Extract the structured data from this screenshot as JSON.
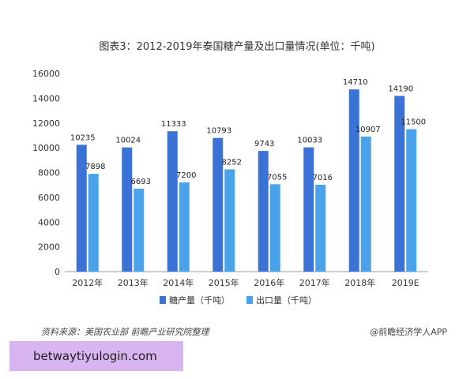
{
  "chart_data": {
    "type": "bar",
    "title": "图表3：2012-2019年泰国糖产量及出口量情况(单位：千吨)",
    "categories": [
      "2012年",
      "2013年",
      "2014年",
      "2015年",
      "2016年",
      "2017年",
      "2018年",
      "2019E"
    ],
    "series": [
      {
        "name": "糖产量（千吨）",
        "values": [
          10235,
          10024,
          11333,
          10793,
          9743,
          10033,
          14710,
          14190
        ],
        "color": "#3a72d6"
      },
      {
        "name": "出口量（千吨）",
        "values": [
          7898,
          6693,
          7200,
          8252,
          7055,
          7016,
          10907,
          11500
        ],
        "color": "#4aa3ea"
      }
    ],
    "ylim": [
      0,
      16000
    ],
    "yticks": [
      0,
      2000,
      4000,
      6000,
      8000,
      10000,
      12000,
      14000,
      16000
    ],
    "xlabel": "",
    "ylabel": "",
    "grid": false,
    "legend": "bottom-center"
  },
  "footer": {
    "source": "资料来源：美国农业部 前瞻产业研究院整理",
    "brand": "@前瞻经济学人APP"
  },
  "overlay": {
    "text": "betwaytiyulogin.com"
  }
}
